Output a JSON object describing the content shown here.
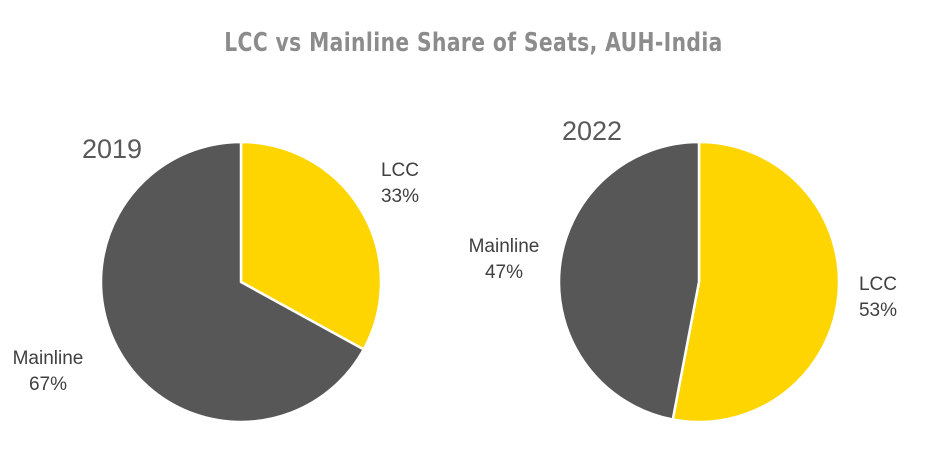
{
  "title": "LCC vs Mainline Share of Seats, AUH-India",
  "colors": {
    "LCC": "#ffd500",
    "Mainline": "#575757",
    "text": "#404040",
    "year": "#595959",
    "title": "#8c8c8c"
  },
  "chart_data": [
    {
      "type": "pie",
      "label": "2019",
      "slices": [
        {
          "name": "LCC",
          "value": 33,
          "value_label": "33%"
        },
        {
          "name": "Mainline",
          "value": 67,
          "value_label": "67%"
        }
      ]
    },
    {
      "type": "pie",
      "label": "2022",
      "slices": [
        {
          "name": "LCC",
          "value": 53,
          "value_label": "53%"
        },
        {
          "name": "Mainline",
          "value": 47,
          "value_label": "47%"
        }
      ]
    }
  ]
}
